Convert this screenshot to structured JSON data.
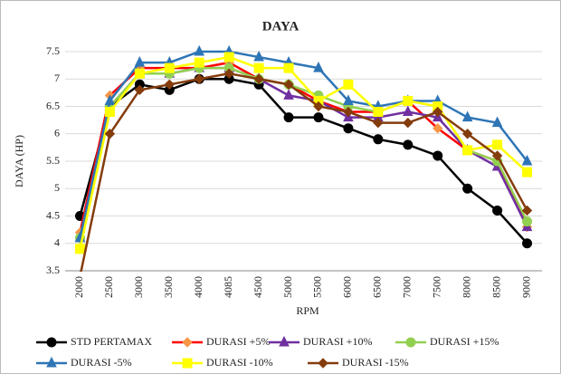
{
  "chart_data": {
    "type": "line",
    "title": "DAYA",
    "xlabel": "RPM",
    "ylabel": "DAYA (HP)",
    "categories": [
      "2000",
      "2500",
      "3000",
      "3500",
      "4000",
      "4085",
      "4500",
      "5000",
      "5500",
      "6000",
      "6500",
      "7000",
      "7500",
      "8000",
      "8500",
      "9000"
    ],
    "ylim": [
      3.5,
      7.5
    ],
    "yticks": [
      3.5,
      4,
      4.5,
      5,
      5.5,
      6,
      6.5,
      7,
      7.5
    ],
    "grid": true,
    "legend": "bottom",
    "series": [
      {
        "name": "STD PERTAMAX",
        "color": "#000000",
        "marker": "circle",
        "values": [
          4.5,
          6.5,
          6.9,
          6.8,
          7.0,
          7.0,
          6.9,
          6.3,
          6.3,
          6.1,
          5.9,
          5.8,
          5.6,
          5.0,
          4.6,
          4.0
        ]
      },
      {
        "name": "DURASI +5%",
        "color": "#ff0000",
        "marker_color": "#f79646",
        "marker": "diamond",
        "values": [
          4.2,
          6.7,
          7.2,
          7.2,
          7.2,
          7.3,
          7.0,
          6.9,
          6.6,
          6.4,
          6.4,
          6.6,
          6.1,
          5.7,
          5.5,
          4.3
        ]
      },
      {
        "name": "DURASI +10%",
        "color": "#7030a0",
        "marker": "triangle",
        "values": [
          4.1,
          6.5,
          7.1,
          7.1,
          7.2,
          7.2,
          7.0,
          6.7,
          6.6,
          6.3,
          6.3,
          6.4,
          6.3,
          5.7,
          5.4,
          4.3
        ]
      },
      {
        "name": "DURASI +15%",
        "color": "#92d050",
        "marker": "circle",
        "values": [
          4.1,
          6.5,
          7.1,
          7.1,
          7.2,
          7.2,
          7.0,
          6.9,
          6.7,
          6.5,
          6.4,
          6.6,
          6.5,
          5.7,
          5.5,
          4.4
        ]
      },
      {
        "name": "DURASI -5%",
        "color": "#2e75b6",
        "marker": "triangle",
        "values": [
          4.1,
          6.6,
          7.3,
          7.3,
          7.5,
          7.5,
          7.4,
          7.3,
          7.2,
          6.6,
          6.5,
          6.6,
          6.6,
          6.3,
          6.2,
          5.5
        ]
      },
      {
        "name": "DURASI -10%",
        "color": "#ffff00",
        "marker": "square",
        "values": [
          3.9,
          6.4,
          7.1,
          7.2,
          7.3,
          7.4,
          7.2,
          7.2,
          6.6,
          6.9,
          6.4,
          6.6,
          6.5,
          5.7,
          5.8,
          5.3
        ]
      },
      {
        "name": "DURASI -15%",
        "color": "#843c0c",
        "marker": "diamond",
        "values": [
          3.4,
          6.0,
          6.8,
          6.9,
          7.0,
          7.1,
          7.0,
          6.9,
          6.5,
          6.4,
          6.2,
          6.2,
          6.4,
          6.0,
          5.6,
          4.6
        ]
      }
    ]
  }
}
